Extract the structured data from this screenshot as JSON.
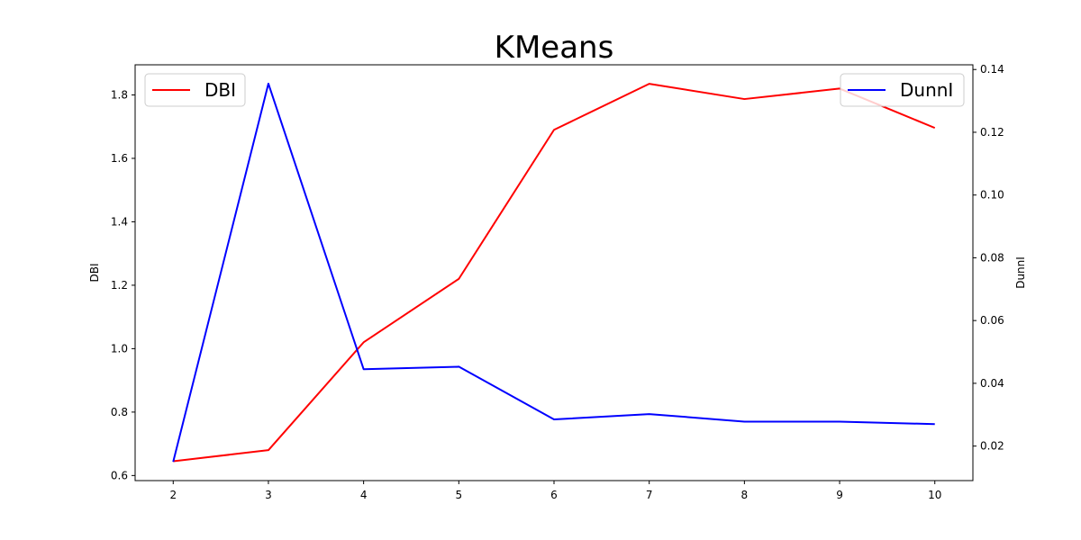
{
  "chart_data": {
    "type": "line",
    "title": "KMeans",
    "x": [
      2,
      3,
      4,
      5,
      6,
      7,
      8,
      9,
      10
    ],
    "xlim": [
      1.6,
      10.4
    ],
    "xticks": [
      "2",
      "3",
      "4",
      "5",
      "6",
      "7",
      "8",
      "9",
      "10"
    ],
    "ylabel_left": "DBI",
    "ylabel_right": "DunnI",
    "ylim_left": [
      0.584,
      1.895
    ],
    "ylim_right": [
      0.009,
      0.1415
    ],
    "yticks_left": [
      "0.6",
      "0.8",
      "1.0",
      "1.2",
      "1.4",
      "1.6",
      "1.8"
    ],
    "yticks_right": [
      "0.02",
      "0.04",
      "0.06",
      "0.08",
      "0.10",
      "0.12",
      "0.14"
    ],
    "series": [
      {
        "name": "DBI",
        "axis": "left",
        "color": "#ff0000",
        "values": [
          0.645,
          0.68,
          1.02,
          1.22,
          1.69,
          1.835,
          1.787,
          1.82,
          1.696
        ]
      },
      {
        "name": "DunnI",
        "axis": "right",
        "color": "#0000ff",
        "values": [
          0.015,
          0.1355,
          0.0445,
          0.0453,
          0.0285,
          0.0302,
          0.0278,
          0.0278,
          0.027
        ]
      }
    ],
    "legend_left": "top-left",
    "legend_right": "top-right",
    "grid": false
  }
}
